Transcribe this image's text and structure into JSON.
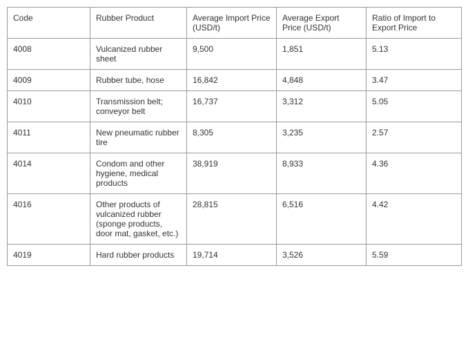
{
  "table": {
    "columns": [
      "Code",
      "Rubber Product",
      "Average Import Price (USD/t)",
      "Average Export Price (USD/t)",
      "Ratio of Import to Export Price"
    ],
    "rows": [
      {
        "code": "4008",
        "product": "Vulcanized rubber sheet",
        "import": "9,500",
        "export": "1,851",
        "ratio": "5.13"
      },
      {
        "code": "4009",
        "product": "Rubber tube, hose",
        "import": "16,842",
        "export": "4,848",
        "ratio": "3.47"
      },
      {
        "code": "4010",
        "product": "Transmission belt; conveyor belt",
        "import": "16,737",
        "export": "3,312",
        "ratio": "5.05"
      },
      {
        "code": "4011",
        "product": "New pneumatic rubber tire",
        "import": "8,305",
        "export": "3,235",
        "ratio": "2.57"
      },
      {
        "code": "4014",
        "product": "Condom and other hygiene, medical products",
        "import": "38,919",
        "export": "8,933",
        "ratio": "4.36"
      },
      {
        "code": "4016",
        "product": "Other products of vulcanized rubber (sponge products, door mat, gasket, etc.)",
        "import": "28,815",
        "export": "6,516",
        "ratio": "4.42"
      },
      {
        "code": "4019",
        "product": "Hard rubber products",
        "import": "19,714",
        "export": "3,526",
        "ratio": "5.59"
      }
    ]
  }
}
